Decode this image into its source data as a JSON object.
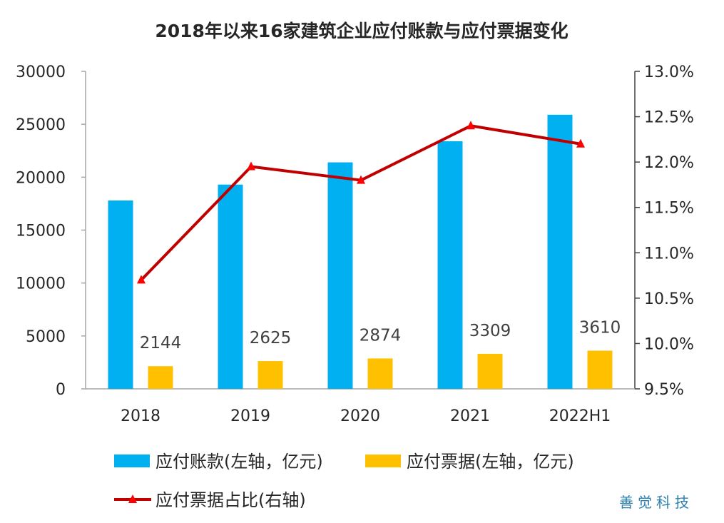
{
  "chart_data": {
    "type": "bar",
    "title": "2018年以来16家建筑企业应付账款与应付票据变化",
    "categories": [
      "2018",
      "2019",
      "2020",
      "2021",
      "2022H1"
    ],
    "series": [
      {
        "name": "应付账款(左轴，亿元)",
        "type": "bar",
        "axis": "left",
        "color": "#00B0F0",
        "values": [
          17800,
          19300,
          21400,
          23400,
          25900
        ]
      },
      {
        "name": "应付票据(左轴，亿元)",
        "type": "bar",
        "axis": "left",
        "color": "#FFC000",
        "values": [
          2144,
          2625,
          2874,
          3309,
          3610
        ],
        "data_labels": [
          "2144",
          "2625",
          "2874",
          "3309",
          "3610"
        ]
      },
      {
        "name": "应付票据占比(右轴)",
        "type": "line",
        "axis": "right",
        "color": "#C00000",
        "marker": "triangle",
        "values": [
          10.7,
          11.95,
          11.8,
          12.4,
          12.2
        ]
      }
    ],
    "left_axis": {
      "ylim": [
        0,
        30000
      ],
      "ticks": [
        "0",
        "5000",
        "10000",
        "15000",
        "20000",
        "25000",
        "30000"
      ]
    },
    "right_axis": {
      "ylim": [
        9.5,
        13.0
      ],
      "unit": "%",
      "ticks": [
        "9.5%",
        "10.0%",
        "10.5%",
        "11.0%",
        "11.5%",
        "12.0%",
        "12.5%",
        "13.0%"
      ]
    },
    "grid": false,
    "legend_position": "bottom"
  },
  "watermark": "善觉科技"
}
